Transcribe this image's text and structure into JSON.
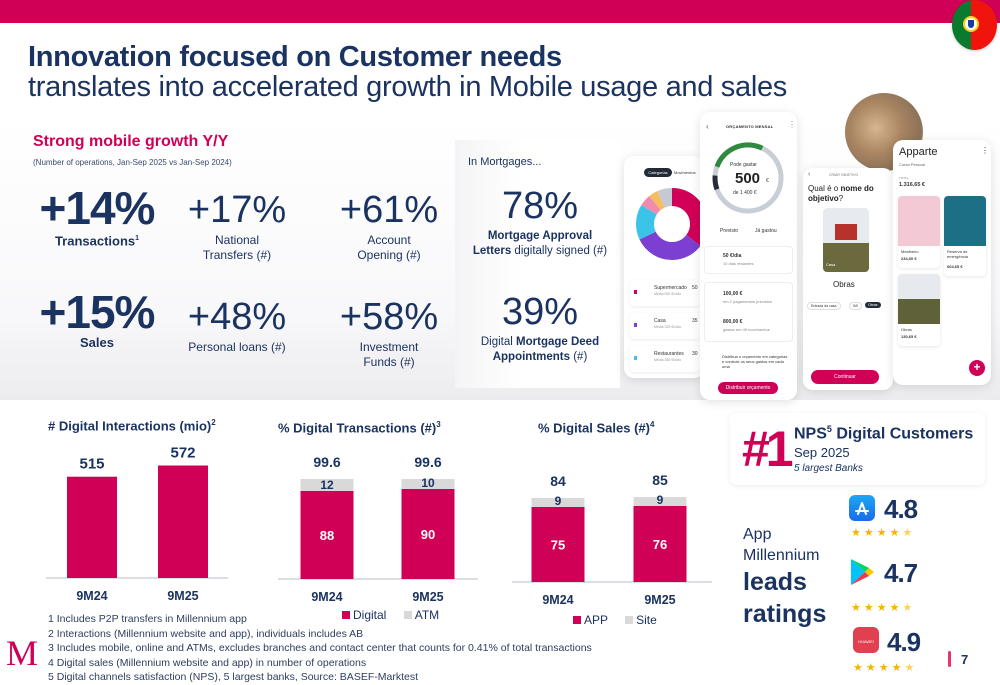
{
  "header": {
    "title_line1": "Innovation focused on Customer needs",
    "title_line2": "translates into accelerated growth in Mobile usage and sales",
    "flag": "portugal-flag-icon"
  },
  "growth": {
    "title": "Strong mobile growth Y/Y",
    "note": "(Number of operations, Jan-Sep 2025 vs Jan-Sep 2024)",
    "kpis": [
      {
        "value": "+14%",
        "label": "Transactions",
        "sup": "1"
      },
      {
        "value": "+17%",
        "label": "National Transfers (#)"
      },
      {
        "value": "+61%",
        "label": "Account Opening (#)"
      },
      {
        "value": "+15%",
        "label": "Sales"
      },
      {
        "value": "+48%",
        "label": "Personal loans (#)"
      },
      {
        "value": "+58%",
        "label": "Investment Funds (#)"
      }
    ],
    "kpi_labels_split": {
      "national_1": "National",
      "national_2": "Transfers (#)",
      "account_1": "Account",
      "account_2": "Opening (#)",
      "invest_1": "Investment",
      "invest_2": "Funds (#)"
    }
  },
  "mortgages": {
    "title": "In Mortgages...",
    "items": [
      {
        "value": "78%",
        "label_bold_1": "Mortgage Approval",
        "label_bold_2": "Letters",
        "label_rest": " digitally signed (#)"
      },
      {
        "value": "39%",
        "label_pre": "Digital ",
        "label_bold_1": "Mortgage Deed",
        "label_bold_2": "Appointments",
        "label_rest": " (#)"
      }
    ]
  },
  "phones": {
    "categories": {
      "tabs": [
        "Categorias",
        "Movimentos"
      ],
      "rows": [
        {
          "name": "Supermercado",
          "sub": "Média 550 €/ciclo",
          "amount": "50",
          "color": "#d10057"
        },
        {
          "name": "Casa",
          "sub": "Média 325 €/ciclo",
          "amount": "35",
          "color": "#7b3fd1"
        },
        {
          "name": "Restaurantes",
          "sub": "Média 350 €/ciclo",
          "amount": "30",
          "color": "#3bc3e8"
        }
      ]
    },
    "budget": {
      "title": "ORÇAMENTO MENSAL",
      "can_spend_label": "Pode gastar",
      "amount": "500",
      "currency": "€",
      "of_total": "de 1 400 €",
      "legend_planned": "Previsto",
      "legend_spent": "Já gastou",
      "rows": [
        {
          "value": "50 €/dia",
          "sub": "10 dias restantes"
        },
        {
          "value": "100,00 €",
          "sub": "em 2 pagamentos previstos"
        },
        {
          "value": "800,00 €",
          "sub": "gastos em 49 movimentos"
        }
      ],
      "info_text": "Distribua o orçamento em categorias e controle os seus gastos em cada uma",
      "cta": "Distribuir orçamento"
    },
    "goal": {
      "title": "CRIAR OBJETIVO",
      "question_1": "Qual é o ",
      "question_bold": "nome do objetivo",
      "question_end": "?",
      "card_label": "Casa",
      "goal_name": "Obras",
      "chips": [
        "Entrada da casa",
        "IMI",
        "Obras"
      ],
      "cta": "Continuar"
    },
    "apparte": {
      "title": "Apparte",
      "subtitle": "Conta Pessoal",
      "total_label": "TOTAL",
      "total": "1.316,65 €",
      "goals": [
        {
          "name": "Mealheiro",
          "amount": "234,00 €"
        },
        {
          "name": "Reserva de emergência",
          "amount": "604,65 €"
        },
        {
          "name": "Obras",
          "amount": "130,65 €"
        }
      ]
    }
  },
  "chart_data": [
    {
      "type": "bar",
      "title": "# Digital Interactions (mio)",
      "title_sup": "2",
      "categories": [
        "9M24",
        "9M25"
      ],
      "values": [
        515,
        572
      ],
      "ylim": [
        0,
        600
      ],
      "color": "#d10057"
    },
    {
      "type": "bar",
      "stacked": true,
      "title": "% Digital Transactions (#)",
      "title_sup": "3",
      "categories": [
        "9M24",
        "9M25"
      ],
      "series": [
        {
          "name": "Digital",
          "values": [
            88,
            90
          ],
          "color": "#d10057"
        },
        {
          "name": "ATM",
          "values": [
            12,
            10
          ],
          "color": "#d9d9d9"
        }
      ],
      "totals": [
        "99.6",
        "99.6"
      ],
      "ylim": [
        0,
        100
      ]
    },
    {
      "type": "bar",
      "stacked": true,
      "title": "% Digital Sales (#)",
      "title_sup": "4",
      "categories": [
        "9M24",
        "9M25"
      ],
      "series": [
        {
          "name": "APP",
          "values": [
            75,
            76
          ],
          "color": "#d10057"
        },
        {
          "name": "Site",
          "values": [
            9,
            9
          ],
          "color": "#d9d9d9"
        }
      ],
      "totals": [
        "84",
        "85"
      ],
      "ylim": [
        0,
        100
      ]
    }
  ],
  "nps": {
    "rank": "#1",
    "title": "NPS",
    "title_sup": "5",
    "title_rest": " Digital Customers",
    "date": "Sep 2025",
    "sub": "5 largest Banks"
  },
  "ratings": {
    "lead_1": "App",
    "lead_2": "Millennium",
    "lead_3": "leads",
    "lead_4": "ratings",
    "stores": [
      {
        "store": "App Store",
        "icon": "app-store-icon",
        "rating": "4.8",
        "stars": 4.5
      },
      {
        "store": "Google Play",
        "icon": "google-play-icon",
        "rating": "4.7",
        "stars": 4.5
      },
      {
        "store": "Huawei AppGallery",
        "icon": "huawei-appgallery-icon",
        "icon_text": "HUAWEI",
        "rating": "4.9",
        "stars": 4.5
      }
    ]
  },
  "footnotes": [
    "1 Includes P2P transfers in Millennium app",
    "2 Interactions (Millennium website and app), individuals includes AB",
    "3 Includes mobile, online and ATMs, excludes branches and contact center that counts for 0.41% of total transactions",
    "4 Digital sales (Millennium website and app) in number of operations",
    "5 Digital channels satisfaction (NPS), 5 largest banks, Source: BASEF-Marktest"
  ],
  "logo": "M",
  "page_number": "7"
}
